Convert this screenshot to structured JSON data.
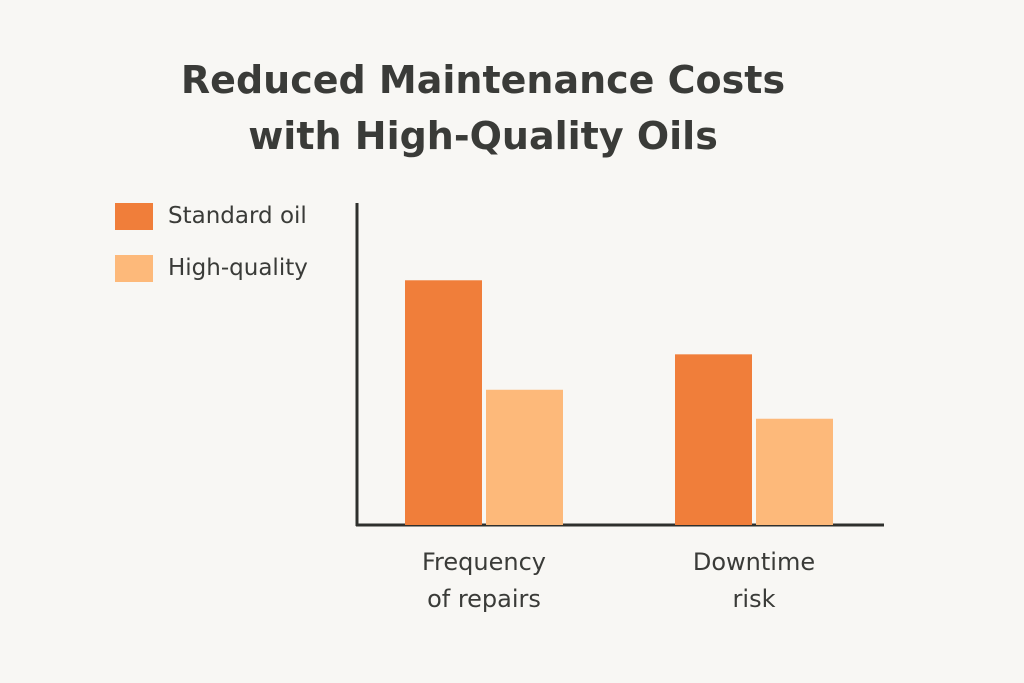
{
  "chart_data": {
    "type": "bar",
    "title": "Reduced Maintenance Costs with High-Quality Oils",
    "categories": [
      "Frequency\nof repairs",
      "Downtime\nrisk"
    ],
    "series": [
      {
        "name": "Standard oil",
        "color": "#f07e3a",
        "values": [
          76,
          53
        ]
      },
      {
        "name": "High-quality",
        "color": "#fdb97a",
        "values": [
          42,
          33
        ]
      }
    ],
    "ylim": [
      0,
      100
    ]
  }
}
